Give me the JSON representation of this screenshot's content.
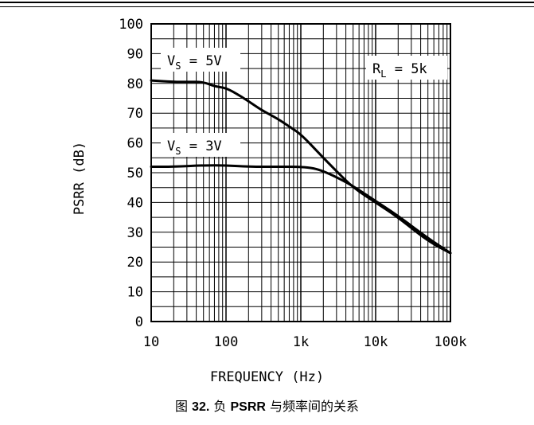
{
  "chart_data": {
    "type": "line",
    "title": "",
    "xlabel": "FREQUENCY (Hz)",
    "ylabel": "PSRR (dB)",
    "x_scale": "log",
    "xlim": [
      10,
      100000
    ],
    "ylim": [
      0,
      100
    ],
    "x_ticks": [
      10,
      100,
      1000,
      10000,
      100000
    ],
    "x_tick_labels": [
      "10",
      "100",
      "1k",
      "10k",
      "100k"
    ],
    "y_ticks": [
      0,
      10,
      20,
      30,
      40,
      50,
      60,
      70,
      80,
      90,
      100
    ],
    "y_tick_labels": [
      "0",
      "10",
      "20",
      "30",
      "40",
      "50",
      "60",
      "70",
      "80",
      "90",
      "100"
    ],
    "grid": true,
    "series": [
      {
        "name": "V_S = 5V",
        "x": [
          10,
          20,
          30,
          50,
          70,
          100,
          150,
          200,
          300,
          500,
          700,
          1000,
          2000,
          3000,
          5000,
          10000,
          20000,
          50000,
          100000
        ],
        "y": [
          81,
          80.5,
          80.5,
          80.5,
          79,
          78.5,
          76,
          74,
          71,
          68,
          65.5,
          63,
          55,
          50.5,
          45,
          40,
          35,
          27,
          23
        ]
      },
      {
        "name": "V_S = 3V",
        "x": [
          10,
          20,
          50,
          100,
          200,
          500,
          1000,
          1500,
          2000,
          3000,
          5000,
          10000,
          20000,
          50000,
          100000
        ],
        "y": [
          52,
          52,
          52.5,
          52.5,
          52,
          52,
          52,
          51.5,
          50.5,
          48.5,
          45.5,
          40.5,
          35.5,
          28,
          23
        ]
      }
    ],
    "annotations": [
      {
        "label": "V",
        "sub": "S",
        "rest": " = 5V"
      },
      {
        "label": "V",
        "sub": "S",
        "rest": " = 3V"
      },
      {
        "label": "R",
        "sub": "L",
        "rest": " = 5k"
      }
    ]
  },
  "caption": {
    "prefix": "图 ",
    "number": "32.",
    "mid": " 负 ",
    "keyword": "PSRR",
    "suffix": " 与频率间的关系"
  }
}
